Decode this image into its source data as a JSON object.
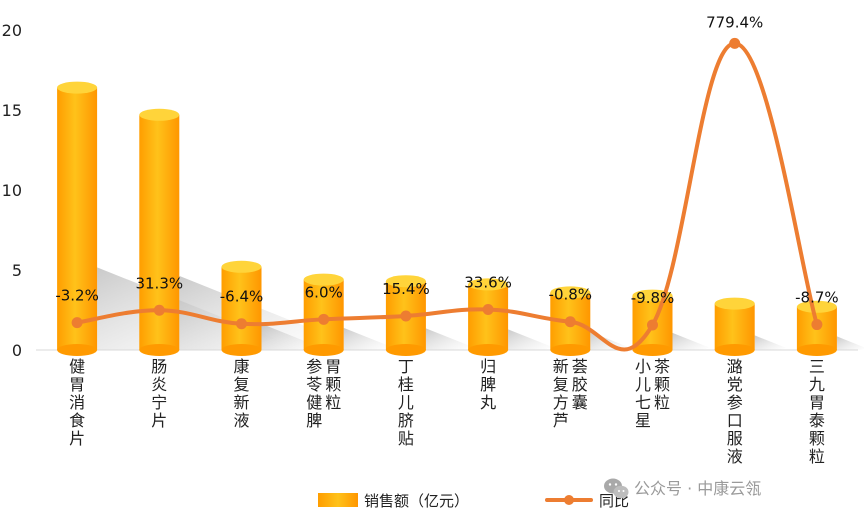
{
  "chart_data": {
    "type": "bar",
    "categories": [
      [
        "健胃消食片"
      ],
      [
        "肠炎宁片"
      ],
      [
        "康复新液"
      ],
      [
        "参苓健脾",
        "胃颗粒"
      ],
      [
        "丁桂儿脐贴"
      ],
      [
        "归脾丸"
      ],
      [
        "新复方芦",
        "荟胶囊"
      ],
      [
        "小儿七星",
        "茶颗粒"
      ],
      [
        "潞党参口服液"
      ],
      [
        "三九胃泰颗粒"
      ]
    ],
    "series": [
      {
        "name": "销售额（亿元）",
        "type": "bar",
        "axis": "left",
        "values": [
          16.4,
          14.7,
          5.2,
          4.4,
          4.3,
          4.1,
          3.6,
          3.4,
          2.9,
          2.7
        ]
      },
      {
        "name": "同比",
        "type": "line",
        "axis": "right",
        "values": [
          -3.2,
          31.3,
          -6.4,
          6.0,
          15.4,
          33.6,
          -0.8,
          -9.8,
          779.4,
          -8.7
        ],
        "labels": [
          "-3.2%",
          "31.3%",
          "-6.4%",
          "6.0%",
          "15.4%",
          "33.6%",
          "-0.8%",
          "-9.8%",
          "779.4%",
          "-8.7%"
        ]
      }
    ],
    "yticks": [
      "0",
      "5",
      "10",
      "15",
      "20"
    ],
    "ylim": [
      0,
      20
    ],
    "title": "",
    "xlabel": "",
    "ylabel": "",
    "legend": "bottom",
    "grid": false
  },
  "colors": {
    "bar_light": "#ffd43a",
    "bar_mid": "#ffb300",
    "bar_dark": "#ff9800",
    "line": "#ed7d31",
    "axis": "#d9d9d9"
  },
  "watermark": {
    "icon": "wechat-icon",
    "text": "公众号 · 中康云瓴"
  }
}
